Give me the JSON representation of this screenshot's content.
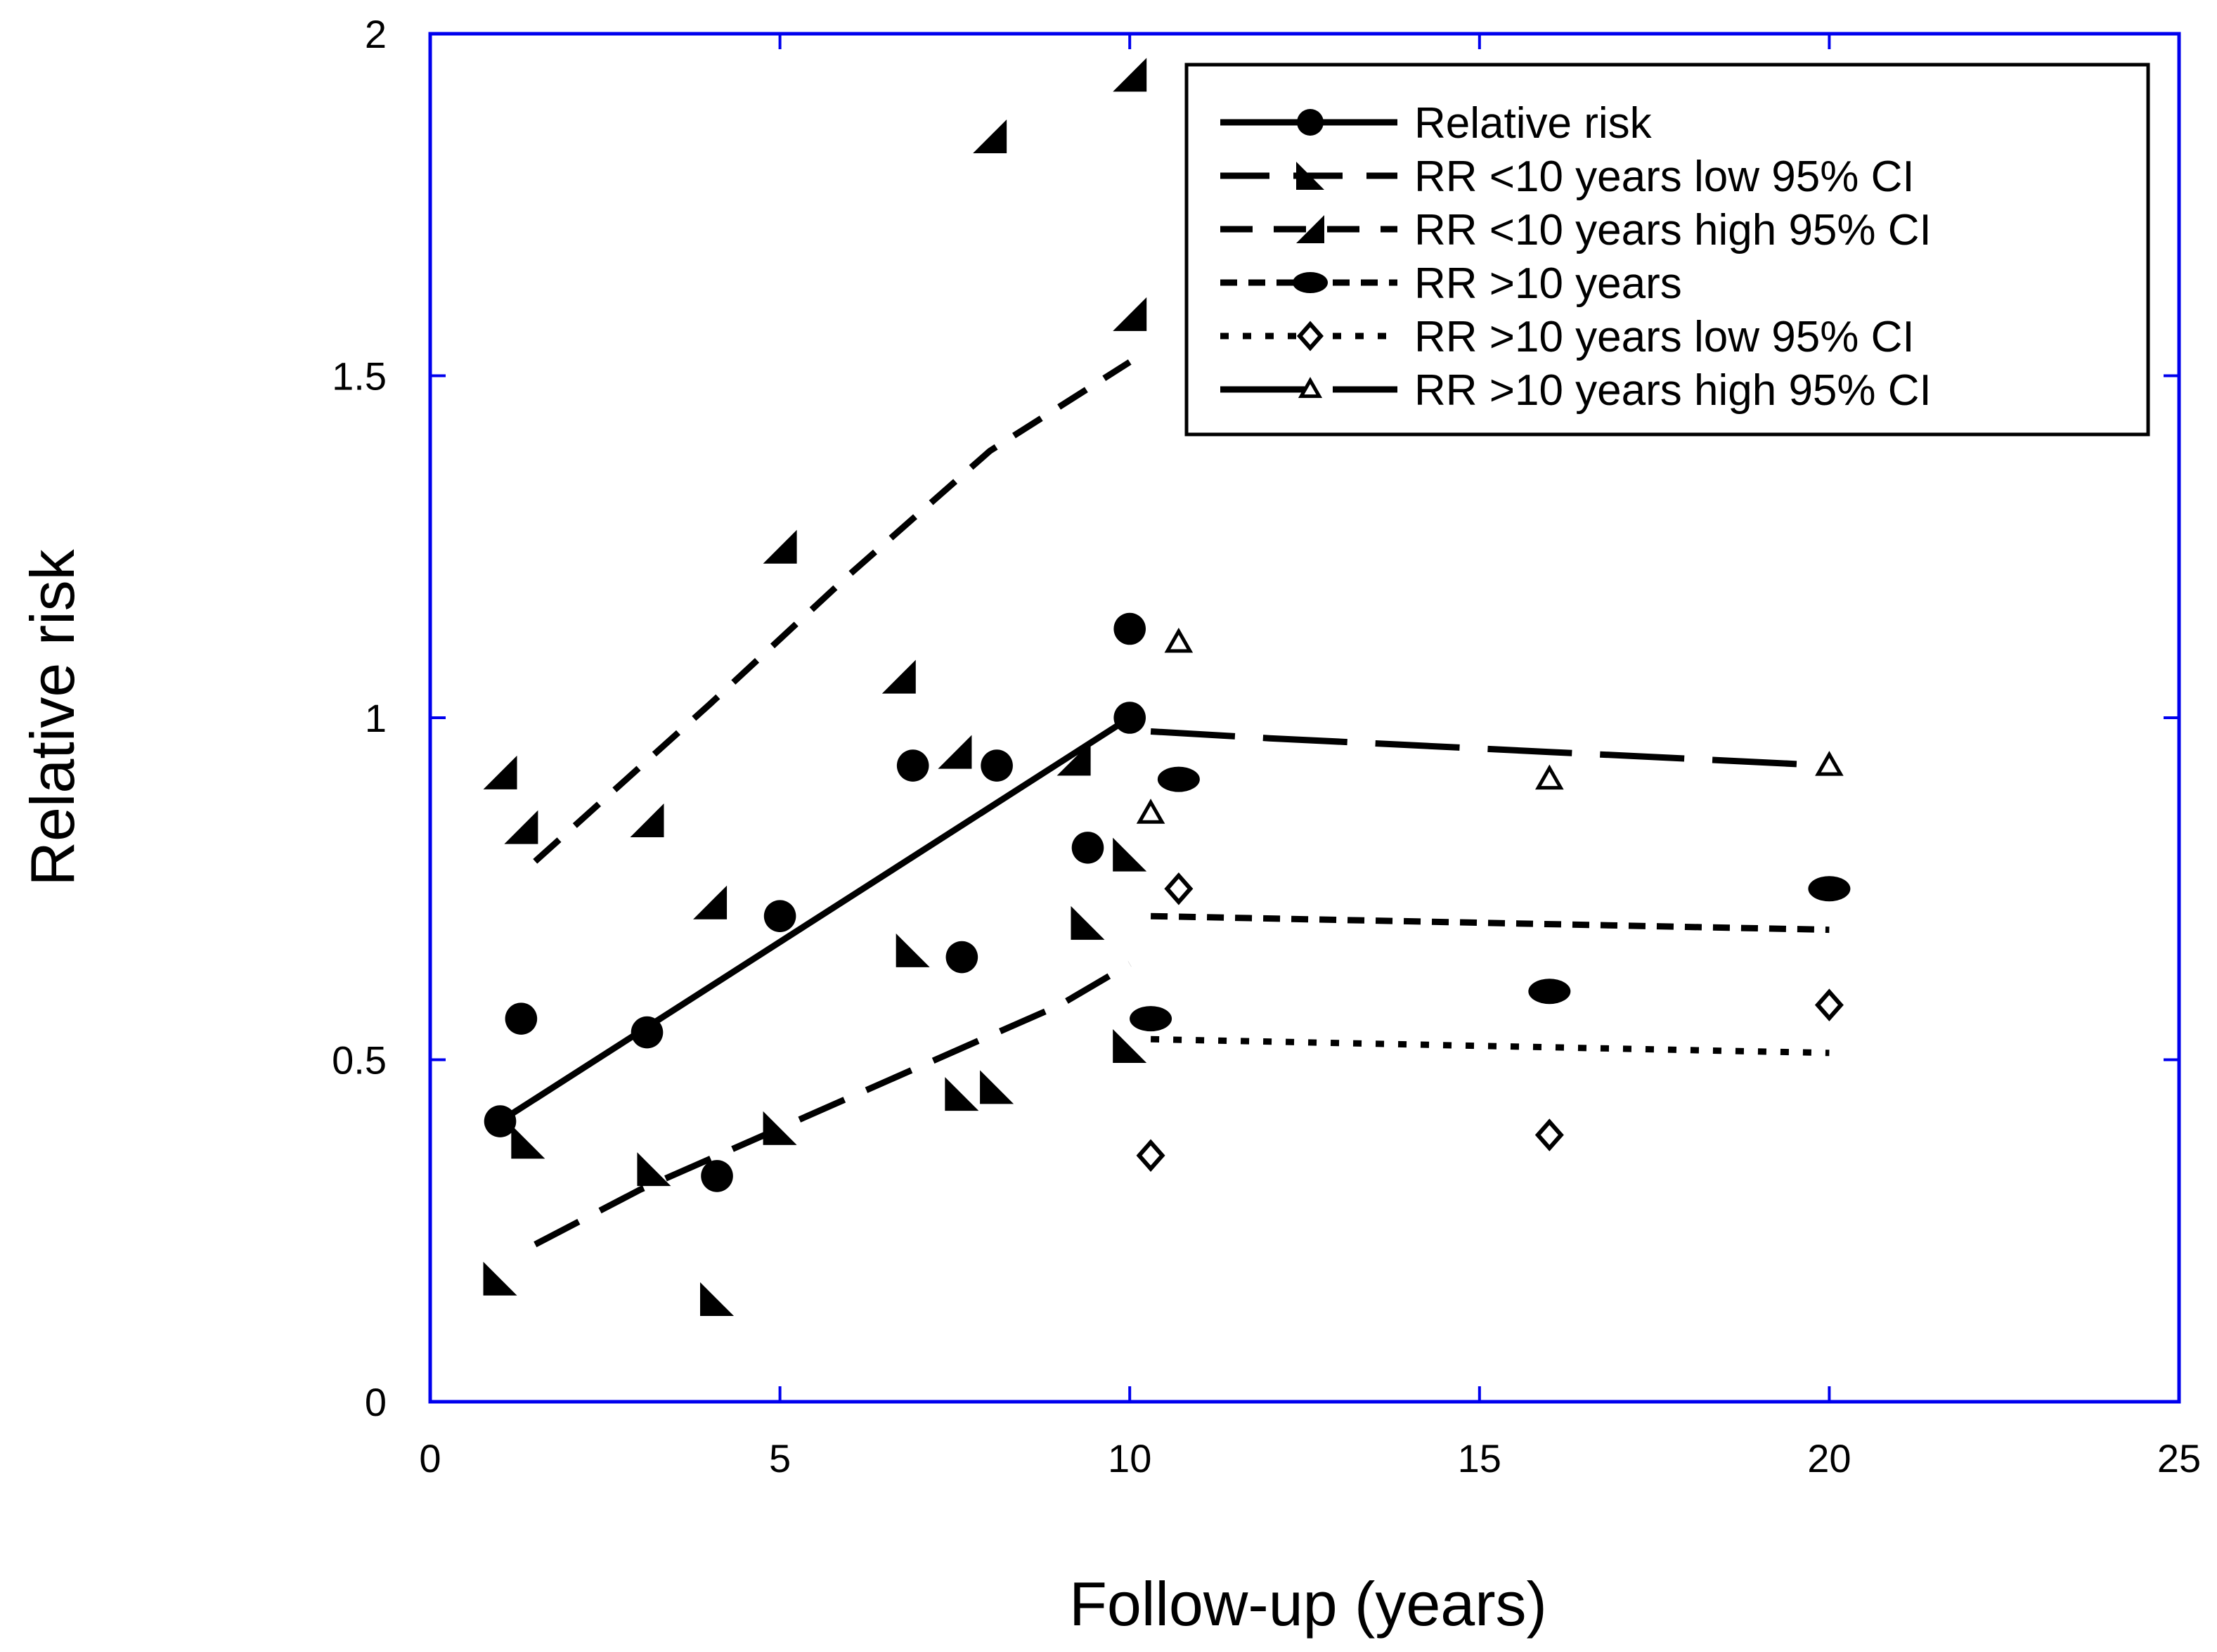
{
  "chart_data": {
    "type": "scatter",
    "title": "",
    "xlabel": "Follow-up (years)",
    "ylabel": "Relative risk",
    "xlim": [
      0,
      25
    ],
    "ylim": [
      0,
      2
    ],
    "x_ticks": [
      0,
      5,
      10,
      15,
      20,
      25
    ],
    "y_ticks": [
      0,
      0.5,
      1,
      1.5,
      2
    ],
    "x_tick_labels": [
      "0",
      "5",
      "10",
      "15",
      "20",
      "25"
    ],
    "y_tick_labels": [
      "0",
      "0.5",
      "1",
      "1.5",
      "2"
    ],
    "grid": false,
    "axis_color": "#0000ee",
    "legend_position": "top-right",
    "series": [
      {
        "name": "Relative risk",
        "marker": "circle",
        "line_style": "solid",
        "points": [
          [
            1,
            0.41
          ],
          [
            1.3,
            0.56
          ],
          [
            3.1,
            0.54
          ],
          [
            4.1,
            0.33
          ],
          [
            5,
            0.71
          ],
          [
            6.9,
            0.93
          ],
          [
            7.6,
            0.65
          ],
          [
            8.1,
            0.93
          ],
          [
            9.4,
            0.81
          ],
          [
            10,
            1.0
          ],
          [
            10,
            1.13
          ]
        ],
        "fit": [
          [
            1,
            0.41
          ],
          [
            10,
            1.0
          ]
        ]
      },
      {
        "name": "RR <10 years low 95% CI",
        "marker": "triangle-lower-right",
        "line_style": "dash-long",
        "points": [
          [
            1,
            0.18
          ],
          [
            1.4,
            0.38
          ],
          [
            3.2,
            0.34
          ],
          [
            4.1,
            0.15
          ],
          [
            5,
            0.4
          ],
          [
            6.9,
            0.66
          ],
          [
            7.6,
            0.45
          ],
          [
            8.1,
            0.46
          ],
          [
            9.4,
            0.7
          ],
          [
            10,
            0.52
          ],
          [
            10,
            0.8
          ]
        ],
        "fit": [
          [
            1.5,
            0.23
          ],
          [
            3,
            0.31
          ],
          [
            5,
            0.4
          ],
          [
            7,
            0.49
          ],
          [
            9,
            0.58
          ],
          [
            10,
            0.64
          ]
        ]
      },
      {
        "name": "RR <10 years high 95% CI",
        "marker": "triangle-upper-left",
        "line_style": "dash-medium",
        "points": [
          [
            1,
            0.92
          ],
          [
            1.3,
            0.84
          ],
          [
            3.1,
            0.85
          ],
          [
            4,
            0.73
          ],
          [
            5,
            1.25
          ],
          [
            6.7,
            1.06
          ],
          [
            7.5,
            0.95
          ],
          [
            8,
            1.85
          ],
          [
            9.2,
            0.94
          ],
          [
            10,
            1.59
          ],
          [
            10,
            1.94
          ]
        ],
        "fit": [
          [
            1.5,
            0.79
          ],
          [
            4,
            1.02
          ],
          [
            6,
            1.21
          ],
          [
            8,
            1.39
          ],
          [
            10,
            1.52
          ]
        ]
      },
      {
        "name": "RR >10 years",
        "marker": "ellipse",
        "line_style": "dash-short",
        "points": [
          [
            10.3,
            0.56
          ],
          [
            10.7,
            0.91
          ],
          [
            16,
            0.6
          ],
          [
            20,
            0.75
          ]
        ],
        "fit": [
          [
            10.3,
            0.71
          ],
          [
            20,
            0.69
          ]
        ]
      },
      {
        "name": "RR >10 years low 95% CI",
        "marker": "diamond-open",
        "line_style": "dotted",
        "points": [
          [
            10.3,
            0.36
          ],
          [
            10.7,
            0.75
          ],
          [
            16,
            0.39
          ],
          [
            20,
            0.58
          ]
        ],
        "fit": [
          [
            10.3,
            0.53
          ],
          [
            20,
            0.51
          ]
        ]
      },
      {
        "name": "RR >10 years high 95% CI",
        "marker": "triangle-open",
        "line_style": "dash-very-long",
        "points": [
          [
            10.3,
            0.86
          ],
          [
            10.7,
            1.11
          ],
          [
            16,
            0.91
          ],
          [
            20,
            0.93
          ]
        ],
        "fit": [
          [
            10.3,
            0.98
          ],
          [
            12,
            0.97
          ],
          [
            14,
            0.96
          ],
          [
            16,
            0.95
          ],
          [
            18,
            0.94
          ],
          [
            20,
            0.93
          ]
        ]
      }
    ]
  }
}
